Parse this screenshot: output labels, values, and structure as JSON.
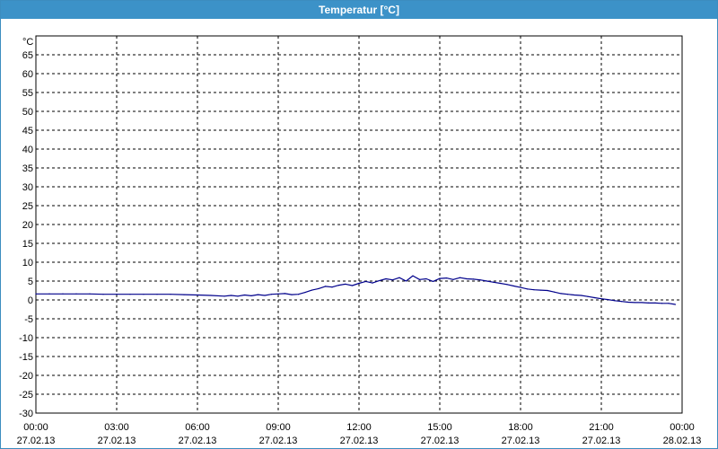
{
  "window": {
    "title": "Temperatur [°C]"
  },
  "chart_data": {
    "type": "line",
    "title": "Temperatur [°C]",
    "ylabel": "°C",
    "xlabel": "",
    "ylim": [
      -30,
      70
    ],
    "xlim": [
      0,
      24
    ],
    "grid": true,
    "y_ticks": [
      "65",
      "60",
      "55",
      "50",
      "45",
      "40",
      "35",
      "30",
      "25",
      "20",
      "15",
      "10",
      "5",
      "0",
      "-5",
      "-10",
      "-15",
      "-20",
      "-25",
      "-30"
    ],
    "x_ticks": [
      {
        "time": "00:00",
        "date": "27.02.13"
      },
      {
        "time": "03:00",
        "date": "27.02.13"
      },
      {
        "time": "06:00",
        "date": "27.02.13"
      },
      {
        "time": "09:00",
        "date": "27.02.13"
      },
      {
        "time": "12:00",
        "date": "27.02.13"
      },
      {
        "time": "15:00",
        "date": "27.02.13"
      },
      {
        "time": "18:00",
        "date": "27.02.13"
      },
      {
        "time": "21:00",
        "date": "27.02.13"
      },
      {
        "time": "00:00",
        "date": "28.02.13"
      }
    ],
    "series": [
      {
        "color": "#00008b",
        "x": [
          0,
          0.5,
          1,
          1.5,
          2,
          2.5,
          3,
          3.5,
          4,
          4.5,
          5,
          5.5,
          6,
          6.5,
          7,
          7.25,
          7.5,
          7.75,
          8,
          8.25,
          8.5,
          8.75,
          9,
          9.25,
          9.5,
          9.75,
          10,
          10.25,
          10.5,
          10.75,
          11,
          11.25,
          11.5,
          11.75,
          12,
          12.25,
          12.5,
          12.75,
          13,
          13.25,
          13.5,
          13.75,
          14,
          14.25,
          14.5,
          14.75,
          15,
          15.25,
          15.5,
          15.75,
          16,
          16.25,
          16.5,
          16.75,
          17,
          17.25,
          17.5,
          17.75,
          18,
          18.25,
          18.5,
          18.75,
          19,
          19.25,
          19.5,
          19.75,
          20,
          20.25,
          20.5,
          20.75,
          21,
          21.25,
          21.5,
          21.75,
          22,
          22.25,
          22.5,
          22.75,
          23,
          23.25,
          23.5,
          23.75
        ],
        "values": [
          1.6,
          1.6,
          1.6,
          1.6,
          1.6,
          1.5,
          1.5,
          1.5,
          1.5,
          1.5,
          1.5,
          1.4,
          1.3,
          1.2,
          1.0,
          1.2,
          1.0,
          1.3,
          1.1,
          1.4,
          1.2,
          1.5,
          1.6,
          1.7,
          1.4,
          1.5,
          2.0,
          2.6,
          3.0,
          3.6,
          3.4,
          3.9,
          4.2,
          3.8,
          4.4,
          4.9,
          4.5,
          5.1,
          5.6,
          5.3,
          5.9,
          5.0,
          6.4,
          5.4,
          5.6,
          4.9,
          5.7,
          5.8,
          5.4,
          5.9,
          5.6,
          5.5,
          5.3,
          5.0,
          4.7,
          4.4,
          4.1,
          3.7,
          3.3,
          2.9,
          2.7,
          2.6,
          2.5,
          2.1,
          1.7,
          1.5,
          1.3,
          1.2,
          0.9,
          0.6,
          0.3,
          0.1,
          -0.2,
          -0.4,
          -0.6,
          -0.7,
          -0.7,
          -0.8,
          -0.8,
          -0.9,
          -0.9,
          -1.2
        ]
      }
    ]
  }
}
